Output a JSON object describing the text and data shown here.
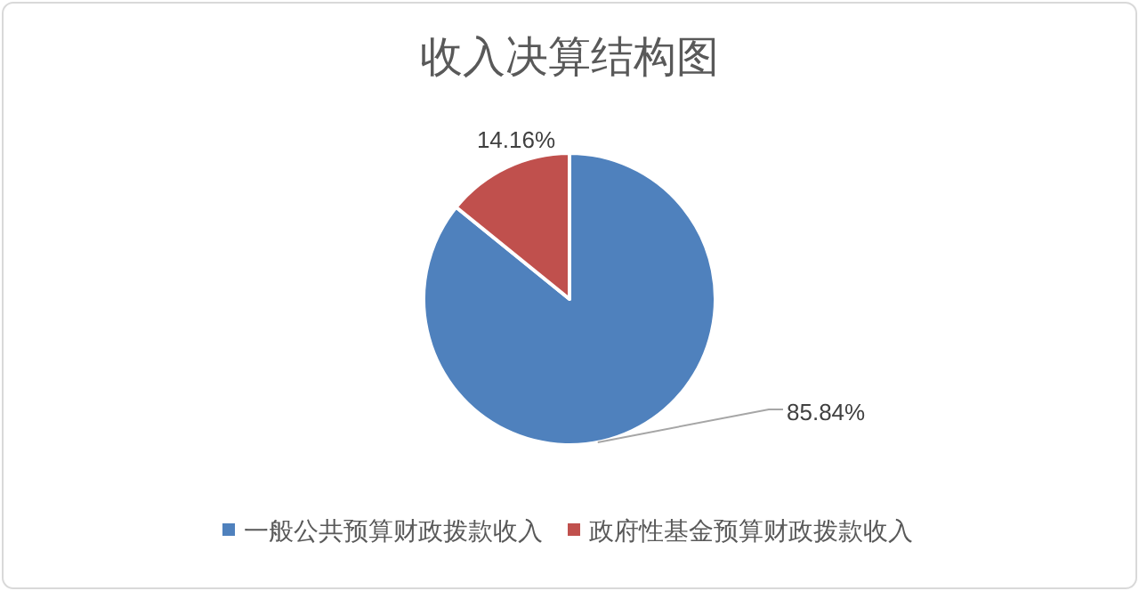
{
  "chart_data": {
    "type": "pie",
    "title": "收入决算结构图",
    "categories": [
      "一般公共预算财政拨款收入",
      "政府性基金预算财政拨款收入"
    ],
    "values": [
      85.84,
      14.16
    ],
    "colors": [
      "#4f81bd",
      "#c0504d"
    ],
    "value_labels": [
      "85.84%",
      "14.16%"
    ],
    "legend": "bottom"
  }
}
